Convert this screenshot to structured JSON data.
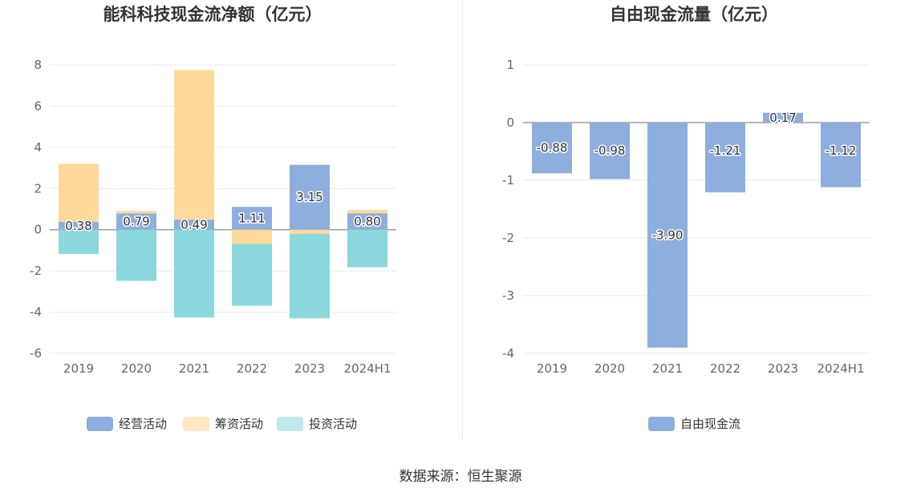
{
  "colors": {
    "operating": "#8eaedd",
    "financing": "#ffd99a",
    "investing": "#8ad8dc",
    "financing_legend": "#ffe8c4",
    "investing_legend": "#c0e9eb",
    "free_cash_flow": "#8eaedd"
  },
  "source_text": "数据来源：恒生聚源",
  "chart_data": [
    {
      "type": "bar",
      "stacked": true,
      "title": "能科科技现金流净额（亿元）",
      "categories": [
        "2019",
        "2020",
        "2021",
        "2022",
        "2023",
        "2024H1"
      ],
      "ylim": [
        -6,
        8
      ],
      "yticks": [
        -6,
        -4,
        -2,
        0,
        2,
        4,
        6,
        8
      ],
      "series": [
        {
          "name": "经营活动",
          "values": [
            0.38,
            0.79,
            0.49,
            1.11,
            3.15,
            0.8
          ],
          "labels": [
            "0.38",
            "0.79",
            "0.49",
            "1.11",
            "3.15",
            "0.80"
          ]
        },
        {
          "name": "筹资活动",
          "values": [
            2.82,
            0.12,
            7.26,
            -0.69,
            -0.2,
            0.16
          ]
        },
        {
          "name": "投资活动",
          "values": [
            -1.17,
            -2.48,
            -4.26,
            -3.0,
            -4.1,
            -1.82
          ]
        }
      ],
      "legend": [
        "经营活动",
        "筹资活动",
        "投资活动"
      ]
    },
    {
      "type": "bar",
      "title": "自由现金流量（亿元）",
      "categories": [
        "2019",
        "2020",
        "2021",
        "2022",
        "2023",
        "2024H1"
      ],
      "ylim": [
        -4,
        1
      ],
      "yticks": [
        -4,
        -3,
        -2,
        -1,
        0,
        1
      ],
      "series": [
        {
          "name": "自由现金流",
          "values": [
            -0.88,
            -0.98,
            -3.9,
            -1.21,
            0.17,
            -1.12
          ],
          "labels": [
            "-0.88",
            "-0.98",
            "-3.90",
            "-1.21",
            "0.17",
            "-1.12"
          ]
        }
      ],
      "legend": [
        "自由现金流"
      ]
    }
  ]
}
